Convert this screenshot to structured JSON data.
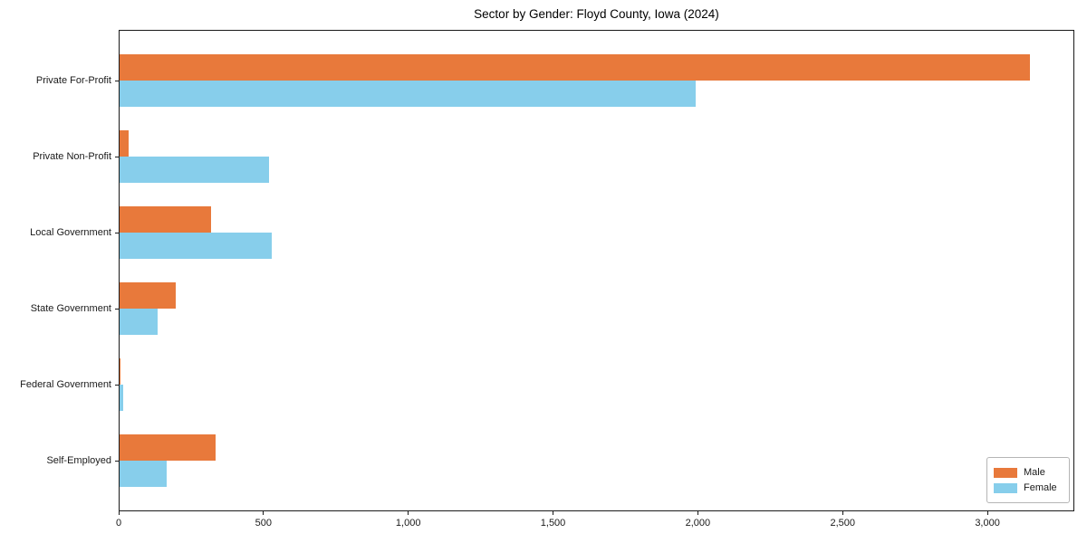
{
  "chart_data": {
    "type": "bar",
    "orientation": "horizontal",
    "title": "Sector by Gender: Floyd County, Iowa (2024)",
    "categories": [
      "Private For-Profit",
      "Private Non-Profit",
      "Local Government",
      "State Government",
      "Federal Government",
      "Self-Employed"
    ],
    "series": [
      {
        "name": "Male",
        "color": "#E8793B",
        "values": [
          3145,
          30,
          316,
          194,
          4,
          332
        ]
      },
      {
        "name": "Female",
        "color": "#87CEEB",
        "values": [
          1990,
          517,
          527,
          131,
          11,
          163
        ]
      }
    ],
    "xlim": [
      0,
      3300
    ],
    "xticks": [
      0,
      500,
      1000,
      1500,
      2000,
      2500,
      3000
    ],
    "xtick_labels": [
      "0",
      "500",
      "1,000",
      "1,500",
      "2,000",
      "2,500",
      "3,000"
    ],
    "grid": false,
    "legend": {
      "position": "lower right",
      "entries": [
        "Male",
        "Female"
      ]
    }
  }
}
